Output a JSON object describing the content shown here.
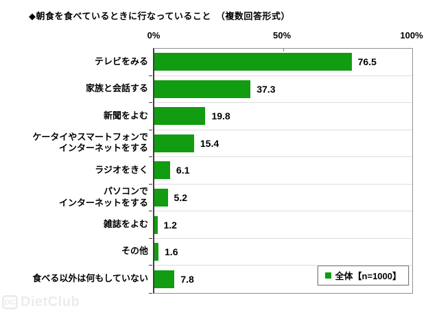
{
  "title": "◆朝食を食べているときに行なっていること　（複数回答形式）",
  "legend": {
    "label": "全体【n=1000】"
  },
  "watermark": {
    "icon": "DC",
    "text": "DietClub"
  },
  "colors": {
    "bar": "#119C11",
    "separator": "#dcdcdc",
    "plot_border": "#8f8f8f",
    "axis": "#3f3f3f",
    "watermark": "#edece8"
  },
  "chart_data": {
    "type": "bar",
    "orientation": "horizontal",
    "title": "◆朝食を食べているときに行なっていること　（複数回答形式）",
    "categories": [
      "テレビをみる",
      "家族と会話する",
      "新聞をよむ",
      "ケータイやスマートフォンで\nインターネットをする",
      "ラジオをきく",
      "パソコンで\nインターネットをする",
      "雑誌をよむ",
      "その他",
      "食べる以外は何もしていない"
    ],
    "values": [
      76.5,
      37.3,
      19.8,
      15.4,
      6.1,
      5.2,
      1.2,
      1.6,
      7.8
    ],
    "series": [
      {
        "name": "全体【n=1000】",
        "values": [
          76.5,
          37.3,
          19.8,
          15.4,
          6.1,
          5.2,
          1.2,
          1.6,
          7.8
        ]
      }
    ],
    "xlim": [
      0,
      100
    ],
    "x_tick_labels": [
      "0%",
      "50%",
      "100%"
    ],
    "xlabel": "",
    "ylabel": "",
    "grid": false,
    "legend_position": "inside-bottom-right",
    "bar_color": "#119C11"
  }
}
